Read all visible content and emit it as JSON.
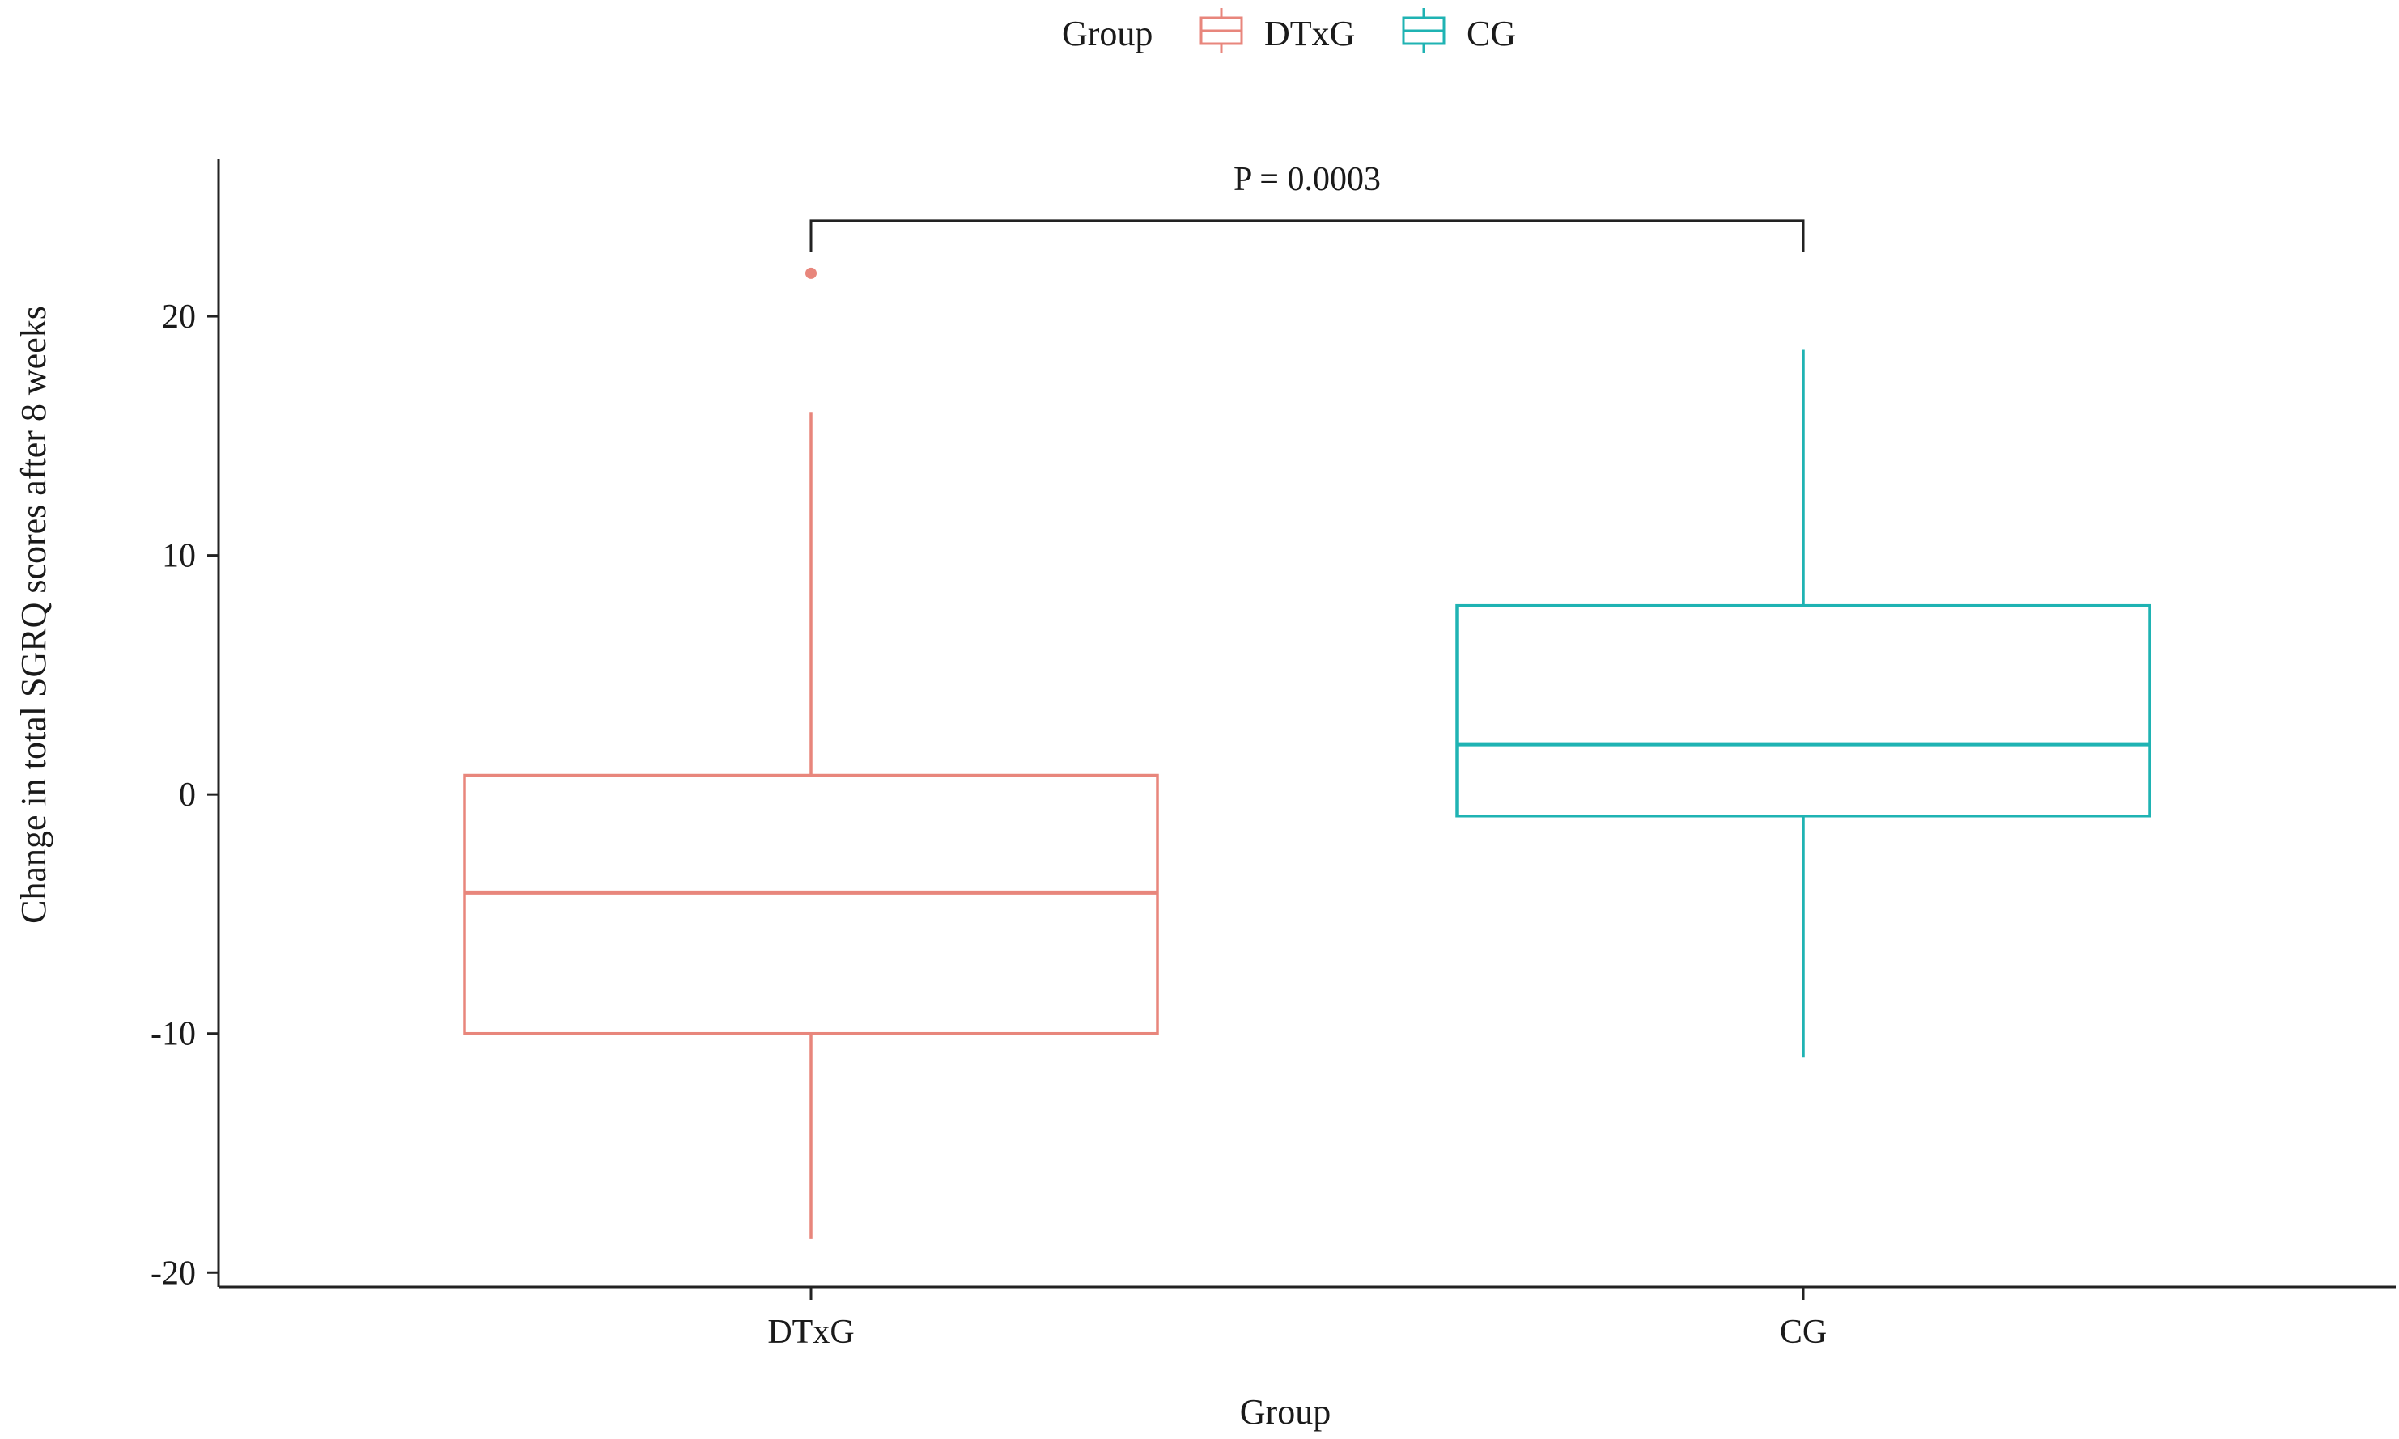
{
  "chart_data": {
    "type": "boxplot",
    "xlabel": "Group",
    "ylabel": "Change in total SGRQ scores after 8 weeks",
    "ylim": [
      -20.6,
      26.6
    ],
    "yticks": [
      20,
      10,
      0,
      -10,
      -20
    ],
    "grid": false,
    "legend": {
      "title": "Group",
      "placement": "top-center",
      "entries": [
        "DTxG",
        "CG"
      ]
    },
    "categories": [
      "DTxG",
      "CG"
    ],
    "series": [
      {
        "name": "DTxG",
        "color": "#E8867C",
        "whisker_low": -18.6,
        "q1": -10.0,
        "median": -4.1,
        "q3": 0.8,
        "whisker_high": 16.0,
        "outliers": [
          21.8
        ]
      },
      {
        "name": "CG",
        "color": "#1FB3B3",
        "whisker_low": -11.0,
        "q1": -0.9,
        "median": 2.1,
        "q3": 7.9,
        "whisker_high": 18.6,
        "outliers": []
      }
    ],
    "annotation": {
      "text": "P = 0.0003",
      "from": "DTxG",
      "to": "CG",
      "y": 24.0,
      "tip_y": 22.7
    }
  }
}
